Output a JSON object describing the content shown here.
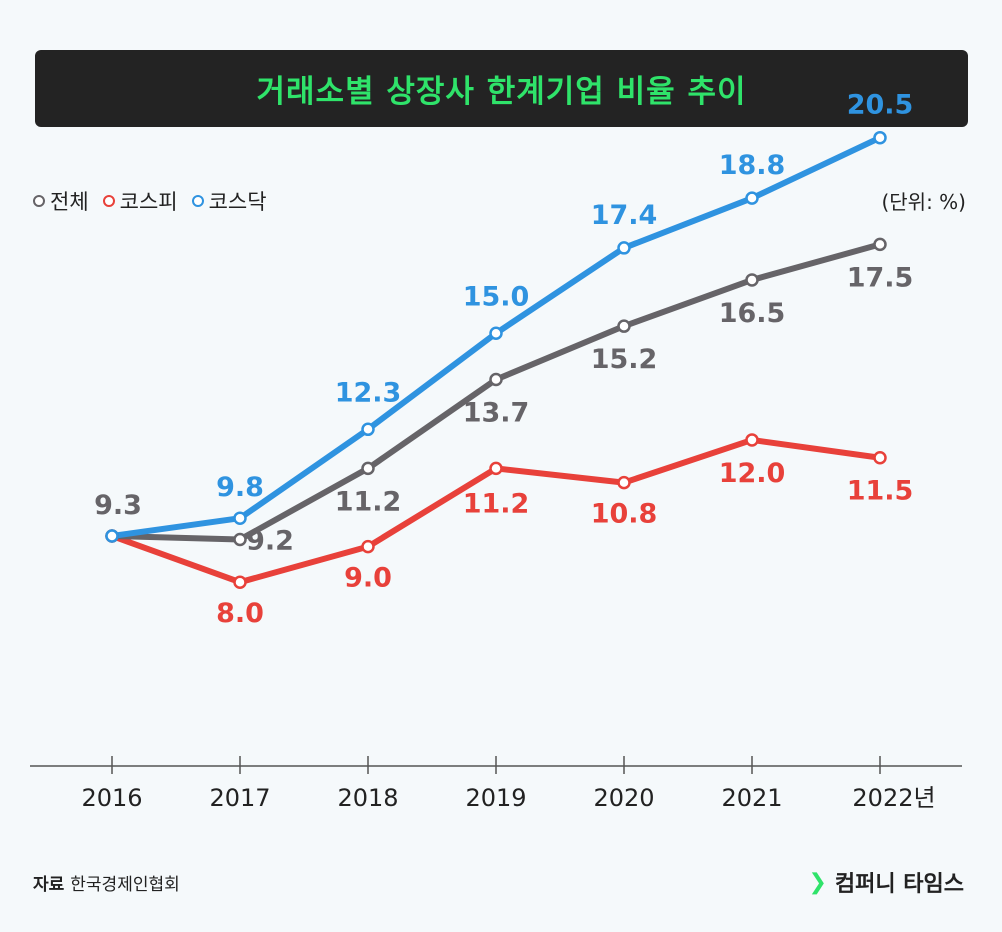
{
  "title": "거래소별 상장사 한계기업 비율 추이",
  "unit": "(단위: %)",
  "source_label": "자료",
  "source_value": "한국경제인협회",
  "brand": "컴퍼니 타임스",
  "colors": {
    "total": "#666468",
    "kospi": "#e8413a",
    "kosdaq": "#2f93e0",
    "title_green": "#2fe36a"
  },
  "chart_data": {
    "type": "line",
    "title": "거래소별 상장사 한계기업 비율 추이",
    "ylabel": "(단위: %)",
    "categories": [
      "2016",
      "2017",
      "2018",
      "2019",
      "2020",
      "2021",
      "2022년"
    ],
    "ylim": [
      3,
      22
    ],
    "series": [
      {
        "key": "kosdaq",
        "name": "코스닥",
        "values": [
          9.3,
          9.8,
          12.3,
          15.0,
          17.4,
          18.8,
          20.5
        ],
        "labels": [
          "",
          "9.8",
          "12.3",
          "15.0",
          "17.4",
          "18.8",
          "20.5"
        ]
      },
      {
        "key": "total",
        "name": "전체",
        "values": [
          9.3,
          9.2,
          11.2,
          13.7,
          15.2,
          16.5,
          17.5
        ],
        "labels": [
          "9.3",
          "9.2",
          "11.2",
          "13.7",
          "15.2",
          "16.5",
          "17.5"
        ]
      },
      {
        "key": "kospi",
        "name": "코스피",
        "values": [
          9.3,
          8.0,
          9.0,
          11.2,
          10.8,
          12.0,
          11.5
        ],
        "labels": [
          "",
          "8.0",
          "9.0",
          "11.2",
          "10.8",
          "12.0",
          "11.5"
        ]
      }
    ]
  }
}
